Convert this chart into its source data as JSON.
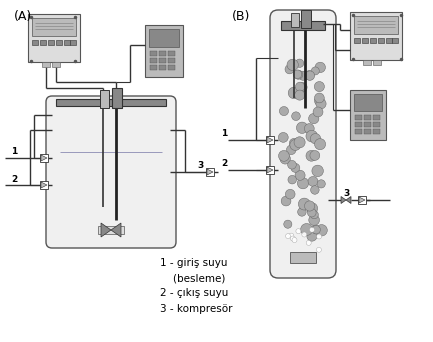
{
  "background_color": "#ffffff",
  "label_A": "(A)",
  "label_B": "(B)",
  "legend_lines": [
    "1 - giriş suyu",
    "    (besleme)",
    "2 - çıkış suyu",
    "3 - kompresör"
  ],
  "fig_width": 4.33,
  "fig_height": 3.42,
  "dpi": 100
}
